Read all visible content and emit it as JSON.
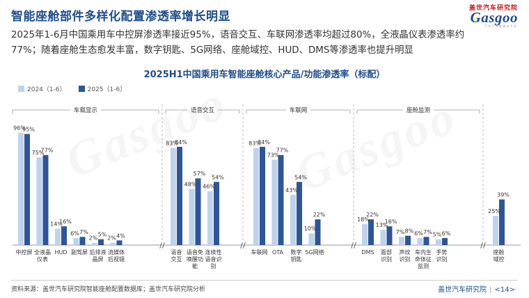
{
  "header": {
    "title": "智能座舱部件多样化配置渗透率增长明显",
    "logo_cn": "盖世汽车研究院",
    "logo_en": "Gasgoo",
    "logo_sub": "汽 车 产 业 链 服 务 平 台"
  },
  "summary": {
    "line1": "2025年1-6月中国乘用车中控屏渗透率接近95%，语音交互、车联网渗透率均超过80%，全液晶仪表渗透率约",
    "line2": "77%；随着座舱生态愈发丰富，数字钥匙、5G网络、座舱域控、HUD、DMS等渗透率也提升明显"
  },
  "footer": {
    "source": "资料来源：盖世汽车研究院智能座舱配置数据库；盖世汽车研究院分析",
    "brand": "盖世汽车研究院",
    "page": "<14>"
  },
  "colors": {
    "series_2024": "#bdd3ee",
    "series_2025": "#2e5597",
    "title": "#1f4e8c"
  },
  "chart_data": {
    "type": "bar",
    "title": "2025H1中国乘用车智能座舱核心产品/功能渗透率（标配）",
    "ylim": [
      0,
      100
    ],
    "grid": false,
    "legend": "top-left",
    "series": [
      {
        "name": "2024（1-6）",
        "color": "#bdd3ee"
      },
      {
        "name": "2025（1-6）",
        "color": "#2e5597"
      }
    ],
    "groups": [
      {
        "name": "车载显示",
        "items": [
          {
            "label": [
              "中控屏"
            ],
            "v2024": 96,
            "v2025": 95
          },
          {
            "label": [
              "全液晶",
              "仪表"
            ],
            "v2024": 75,
            "v2025": 77
          },
          {
            "label": [
              "HUD"
            ],
            "v2024": 14,
            "v2025": 16
          },
          {
            "label": [
              "副驾屏"
            ],
            "v2024": 6,
            "v2025": 7
          },
          {
            "label": [
              "后排液",
              "晶屏"
            ],
            "v2024": 2,
            "v2025": 5
          },
          {
            "label": [
              "流媒体",
              "后视镜"
            ],
            "v2024": 2,
            "v2025": 4
          }
        ]
      },
      {
        "name": "语音交互",
        "items": [
          {
            "label": [
              "语音",
              "交互"
            ],
            "v2024": 83,
            "v2025": 84
          },
          {
            "label": [
              "语音免",
              "唤醒功",
              "能"
            ],
            "v2024": 48,
            "v2025": 57
          },
          {
            "label": [
              "连续性",
              "语音识",
              "别"
            ],
            "v2024": 46,
            "v2025": 54
          }
        ]
      },
      {
        "name": "车联网",
        "items": [
          {
            "label": [
              "车联网"
            ],
            "v2024": 83,
            "v2025": 84
          },
          {
            "label": [
              "OTA"
            ],
            "v2024": 73,
            "v2025": 77
          },
          {
            "label": [
              "数字",
              "钥匙"
            ],
            "v2024": 43,
            "v2025": 54
          },
          {
            "label": [
              "5G网络"
            ],
            "v2024": 10,
            "v2025": 22
          }
        ]
      },
      {
        "name": "座舱监测",
        "items": [
          {
            "label": [
              "DMS"
            ],
            "v2024": 18,
            "v2025": 22
          },
          {
            "label": [
              "面部",
              "识别"
            ],
            "v2024": 13,
            "v2025": 16
          },
          {
            "label": [
              "声纹",
              "识别"
            ],
            "v2024": 7,
            "v2025": 8
          },
          {
            "label": [
              "车内生",
              "命体征",
              "监测"
            ],
            "v2024": 6,
            "v2025": 7
          },
          {
            "label": [
              "手势",
              "识别"
            ],
            "v2024": 5,
            "v2025": 6
          }
        ]
      },
      {
        "name": "",
        "items": [
          {
            "label": [
              "座舱",
              "域控"
            ],
            "v2024": 25,
            "v2025": 39
          }
        ]
      }
    ]
  }
}
